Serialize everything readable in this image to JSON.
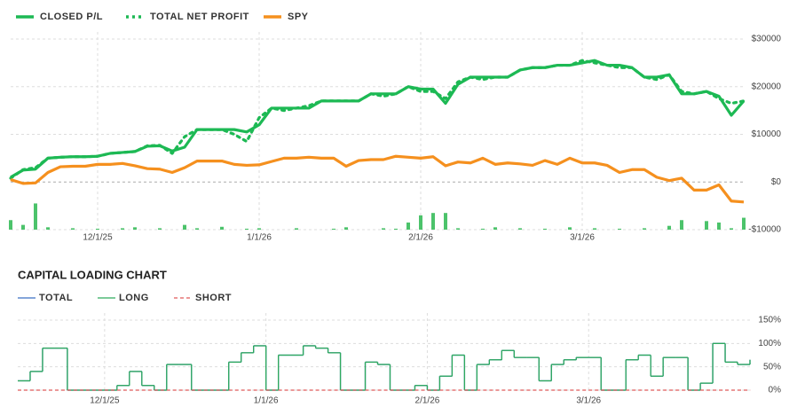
{
  "chart_data": [
    {
      "type": "line",
      "categories": [
        null,
        null,
        null,
        null,
        null,
        null,
        null,
        "12/1/25",
        null,
        null,
        null,
        null,
        null,
        null,
        null,
        null,
        null,
        null,
        null,
        null,
        "1/1/26",
        null,
        null,
        null,
        null,
        null,
        null,
        null,
        null,
        null,
        null,
        null,
        null,
        "2/1/26",
        null,
        null,
        null,
        null,
        null,
        null,
        null,
        null,
        null,
        null,
        null,
        null,
        "3/1/26",
        null,
        null,
        null,
        null,
        null,
        null,
        null,
        null,
        null,
        null,
        null,
        null,
        null
      ],
      "series": [
        {
          "name": "CLOSED P/L",
          "color": "#1db954",
          "style": "solid",
          "values": [
            1000,
            2500,
            2700,
            5000,
            5200,
            5300,
            5300,
            5400,
            6000,
            6200,
            6400,
            7500,
            7600,
            6500,
            7300,
            11000,
            11000,
            11000,
            11000,
            10500,
            12000,
            15500,
            15500,
            15500,
            15500,
            17000,
            17000,
            17000,
            17000,
            18500,
            18500,
            18500,
            20000,
            19500,
            19500,
            16500,
            20500,
            22000,
            22000,
            22000,
            22000,
            23500,
            24000,
            24000,
            24500,
            24500,
            25000,
            25500,
            24500,
            24500,
            24000,
            22000,
            22000,
            22500,
            18500,
            18500,
            19000,
            18000,
            14000,
            17000
          ]
        },
        {
          "name": "TOTAL NET PROFIT",
          "color": "#1db954",
          "style": "dotted",
          "values": [
            800,
            2600,
            3000,
            5000,
            5200,
            5300,
            5300,
            5400,
            6000,
            6200,
            6400,
            7600,
            7700,
            6000,
            9500,
            11000,
            11000,
            11000,
            10000,
            8500,
            13500,
            15500,
            15000,
            15500,
            16000,
            17000,
            17000,
            17000,
            17000,
            18500,
            18000,
            18500,
            20000,
            19000,
            19000,
            17500,
            21000,
            22000,
            21500,
            22000,
            22000,
            23500,
            24000,
            24000,
            24500,
            24500,
            25500,
            25000,
            24500,
            24000,
            24000,
            22000,
            21500,
            22500,
            19000,
            18500,
            19000,
            17500,
            16500,
            17000
          ]
        },
        {
          "name": "SPY",
          "color": "#f5901e",
          "style": "solid",
          "values": [
            500,
            -300,
            -200,
            2000,
            3200,
            3300,
            3300,
            3700,
            3700,
            3900,
            3400,
            2800,
            2700,
            2000,
            3000,
            4400,
            4400,
            4400,
            3700,
            3500,
            3600,
            4300,
            5000,
            5000,
            5200,
            5000,
            5000,
            3300,
            4500,
            4700,
            4700,
            5400,
            5200,
            5000,
            5300,
            3400,
            4200,
            4000,
            5000,
            3700,
            4000,
            3800,
            3500,
            4500,
            3700,
            5000,
            4000,
            4000,
            3500,
            2000,
            2600,
            2600,
            1000,
            300,
            800,
            -1700,
            -1700,
            -600,
            -4000,
            -4200
          ]
        }
      ],
      "bars": {
        "color": "#4cc36b",
        "values": [
          2000,
          1000,
          5500,
          500,
          0,
          300,
          0,
          200,
          0,
          300,
          500,
          0,
          300,
          0,
          1000,
          300,
          0,
          600,
          0,
          200,
          300,
          0,
          0,
          300,
          0,
          0,
          200,
          500,
          0,
          0,
          300,
          200,
          1500,
          3000,
          3500,
          3500,
          300,
          0,
          200,
          500,
          0,
          300,
          0,
          200,
          0,
          500,
          0,
          300,
          0,
          200,
          0,
          300,
          0,
          800,
          2000,
          0,
          1800,
          1500,
          300,
          2500
        ]
      },
      "ylim": [
        -10000,
        30000
      ],
      "yticks": [
        {
          "value": -10000,
          "label": "-$10000"
        },
        {
          "value": 0,
          "label": "$0"
        },
        {
          "value": 10000,
          "label": "$10000"
        },
        {
          "value": 20000,
          "label": "$20000"
        },
        {
          "value": 30000,
          "label": "$30000"
        }
      ],
      "grid": true
    },
    {
      "type": "line",
      "title": "CAPITAL LOADING CHART",
      "step": true,
      "categories": [
        null,
        null,
        null,
        null,
        null,
        null,
        null,
        "12/1/25",
        null,
        null,
        null,
        null,
        null,
        null,
        null,
        null,
        null,
        null,
        null,
        null,
        "1/1/26",
        null,
        null,
        null,
        null,
        null,
        null,
        null,
        null,
        null,
        null,
        null,
        null,
        "2/1/26",
        null,
        null,
        null,
        null,
        null,
        null,
        null,
        null,
        null,
        null,
        null,
        null,
        "3/1/26",
        null,
        null,
        null,
        null,
        null,
        null,
        null,
        null,
        null,
        null,
        null,
        null,
        null
      ],
      "series": [
        {
          "name": "TOTAL",
          "color": "#3b6fc4",
          "style": "solid",
          "values": [
            20,
            40,
            90,
            90,
            0,
            0,
            0,
            0,
            10,
            40,
            10,
            0,
            55,
            55,
            0,
            0,
            0,
            60,
            80,
            95,
            0,
            75,
            75,
            95,
            90,
            80,
            0,
            0,
            60,
            55,
            0,
            0,
            10,
            0,
            30,
            75,
            0,
            55,
            65,
            85,
            70,
            70,
            20,
            55,
            65,
            70,
            70,
            0,
            0,
            65,
            75,
            30,
            70,
            70,
            0,
            15,
            100,
            60,
            55,
            65
          ]
        },
        {
          "name": "LONG",
          "color": "#2eaa5c",
          "style": "solid",
          "values": [
            20,
            40,
            90,
            90,
            0,
            0,
            0,
            0,
            10,
            40,
            10,
            0,
            55,
            55,
            0,
            0,
            0,
            60,
            80,
            95,
            0,
            75,
            75,
            95,
            90,
            80,
            0,
            0,
            60,
            55,
            0,
            0,
            10,
            0,
            30,
            75,
            0,
            55,
            65,
            85,
            70,
            70,
            20,
            55,
            65,
            70,
            70,
            0,
            0,
            65,
            75,
            30,
            70,
            70,
            0,
            15,
            100,
            60,
            55,
            65
          ]
        },
        {
          "name": "SHORT",
          "color": "#e05a5a",
          "style": "dashed",
          "values": [
            0,
            0,
            0,
            0,
            0,
            0,
            0,
            0,
            0,
            0,
            0,
            0,
            0,
            0,
            0,
            0,
            0,
            0,
            0,
            0,
            0,
            0,
            0,
            0,
            0,
            0,
            0,
            0,
            0,
            0,
            0,
            0,
            0,
            0,
            0,
            0,
            0,
            0,
            0,
            0,
            0,
            0,
            0,
            0,
            0,
            0,
            0,
            0,
            0,
            0,
            0,
            0,
            0,
            0,
            0,
            0,
            0,
            0,
            0,
            0
          ]
        }
      ],
      "ylim": [
        0,
        150
      ],
      "yticks": [
        {
          "value": 0,
          "label": "0%"
        },
        {
          "value": 50,
          "label": "50%"
        },
        {
          "value": 100,
          "label": "100%"
        },
        {
          "value": 150,
          "label": "150%"
        }
      ],
      "grid": true
    }
  ]
}
